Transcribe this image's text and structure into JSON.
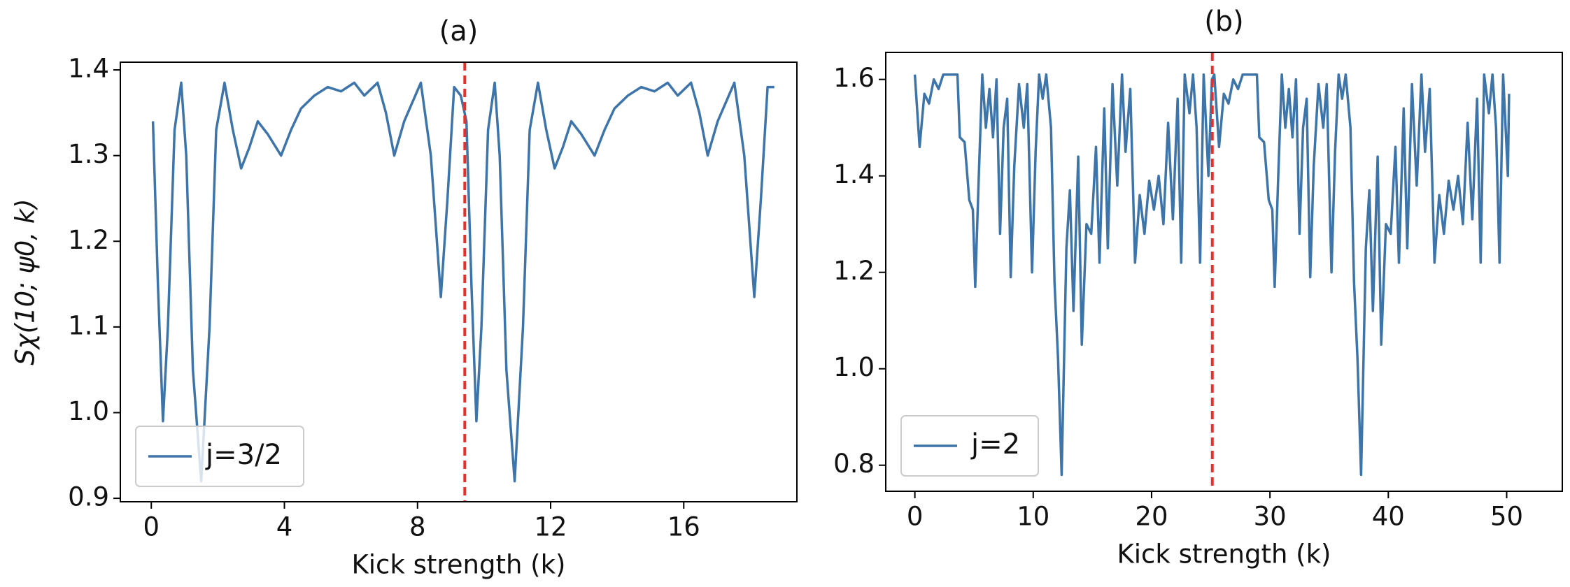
{
  "chart_data": [
    {
      "type": "line",
      "title": "(a)",
      "xlabel": "Kick strength (k)",
      "ylabel": "Sχ(10; ψ0, k)",
      "xlim": [
        -0.93,
        19.4
      ],
      "ylim": [
        0.896,
        1.409
      ],
      "xticks": [
        0,
        4,
        8,
        12,
        16
      ],
      "yticks": [
        0.9,
        {
          "value": 1,
          "label": "1.0"
        },
        1.1,
        1.2,
        1.3,
        1.4
      ],
      "legend": "lower left",
      "vline": {
        "x": 9.42,
        "color": "#e8302a"
      },
      "x": [
        0.05,
        0.2,
        0.35,
        0.5,
        0.7,
        0.9,
        1.05,
        1.25,
        1.5,
        1.75,
        1.95,
        2.2,
        2.45,
        2.7,
        2.95,
        3.2,
        3.5,
        3.9,
        4.2,
        4.5,
        4.9,
        5.3,
        5.7,
        6.1,
        6.4,
        6.8,
        7.05,
        7.3,
        7.6,
        8.1,
        8.4,
        8.7,
        8.9,
        9.1,
        9.3,
        9.47,
        9.62,
        9.77,
        9.92,
        10.12,
        10.32,
        10.47,
        10.67,
        10.92,
        11.17,
        11.37,
        11.62,
        11.87,
        12.12,
        12.37,
        12.62,
        12.92,
        13.32,
        13.62,
        13.92,
        14.32,
        14.72,
        15.12,
        15.52,
        15.82,
        16.22,
        16.47,
        16.72,
        17.02,
        17.52,
        17.82,
        18.12,
        18.32,
        18.52,
        18.72
      ],
      "series": [
        {
          "name": "j=3/2",
          "color": "#3d74aa",
          "values": [
            1.34,
            1.15,
            0.99,
            1.1,
            1.33,
            1.385,
            1.3,
            1.05,
            0.92,
            1.1,
            1.33,
            1.385,
            1.33,
            1.285,
            1.31,
            1.34,
            1.325,
            1.3,
            1.33,
            1.355,
            1.37,
            1.38,
            1.375,
            1.385,
            1.37,
            1.385,
            1.35,
            1.3,
            1.34,
            1.385,
            1.3,
            1.135,
            1.25,
            1.38,
            1.37,
            1.34,
            1.15,
            0.99,
            1.1,
            1.33,
            1.385,
            1.3,
            1.05,
            0.92,
            1.1,
            1.33,
            1.385,
            1.33,
            1.285,
            1.31,
            1.34,
            1.325,
            1.3,
            1.33,
            1.355,
            1.37,
            1.38,
            1.375,
            1.385,
            1.37,
            1.385,
            1.35,
            1.3,
            1.34,
            1.385,
            1.3,
            1.135,
            1.25,
            1.38,
            1.38
          ]
        }
      ]
    },
    {
      "type": "line",
      "title": "(b)",
      "xlabel": "Kick strength (k)",
      "xlim": [
        -2.46,
        54.7
      ],
      "ylim": [
        0.746,
        1.656
      ],
      "xticks": [
        0,
        10,
        20,
        30,
        40,
        50
      ],
      "yticks": [
        0.8,
        {
          "value": 1,
          "label": "1.0"
        },
        1.2,
        1.4,
        1.6
      ],
      "legend": "lower left",
      "vline": {
        "x": 25.13,
        "color": "#e8302a"
      },
      "x": [
        0,
        0.4,
        0.8,
        1.2,
        1.6,
        2.0,
        2.4,
        3.0,
        3.6,
        3.8,
        4.2,
        4.6,
        4.9,
        5.1,
        5.4,
        5.7,
        6.0,
        6.3,
        6.6,
        6.9,
        7.2,
        7.5,
        7.8,
        8.1,
        8.4,
        8.8,
        9.2,
        9.5,
        9.9,
        10.2,
        10.5,
        10.8,
        11.1,
        11.5,
        11.8,
        12.1,
        12.4,
        12.8,
        13.1,
        13.4,
        13.8,
        14.1,
        14.5,
        14.9,
        15.3,
        15.6,
        16.0,
        16.3,
        16.7,
        17.1,
        17.5,
        17.8,
        18.2,
        18.6,
        19.0,
        19.4,
        19.8,
        20.2,
        20.6,
        21.0,
        21.4,
        21.8,
        22.2,
        22.5,
        22.8,
        23.2,
        23.5,
        23.8,
        24.1,
        24.4,
        24.8,
        25.1,
        25.3,
        25.7,
        26.1,
        26.5,
        26.9,
        27.3,
        27.7,
        28.3,
        28.9,
        29.1,
        29.5,
        29.9,
        30.2,
        30.4,
        30.7,
        31.0,
        31.3,
        31.6,
        31.9,
        32.2,
        32.5,
        32.8,
        33.1,
        33.4,
        33.7,
        34.1,
        34.5,
        34.8,
        35.2,
        35.5,
        35.8,
        36.1,
        36.4,
        36.8,
        37.1,
        37.4,
        37.7,
        38.1,
        38.4,
        38.7,
        39.1,
        39.4,
        39.8,
        40.2,
        40.6,
        40.9,
        41.3,
        41.6,
        42.0,
        42.4,
        42.8,
        43.1,
        43.5,
        43.9,
        44.3,
        44.7,
        45.1,
        45.5,
        45.9,
        46.3,
        46.7,
        47.1,
        47.5,
        47.8,
        48.1,
        48.5,
        48.8,
        49.1,
        49.4,
        49.7,
        50.1,
        50.2
      ],
      "series": [
        {
          "name": "j=2",
          "color": "#3d74aa",
          "values": [
            1.61,
            1.46,
            1.57,
            1.55,
            1.6,
            1.58,
            1.61,
            1.61,
            1.61,
            1.48,
            1.47,
            1.35,
            1.33,
            1.17,
            1.4,
            1.61,
            1.5,
            1.58,
            1.48,
            1.6,
            1.28,
            1.5,
            1.56,
            1.19,
            1.42,
            1.59,
            1.5,
            1.59,
            1.2,
            1.45,
            1.61,
            1.56,
            1.61,
            1.5,
            1.18,
            1.02,
            0.78,
            1.25,
            1.37,
            1.12,
            1.44,
            1.05,
            1.3,
            1.28,
            1.46,
            1.22,
            1.54,
            1.25,
            1.59,
            1.38,
            1.61,
            1.45,
            1.58,
            1.22,
            1.36,
            1.28,
            1.39,
            1.33,
            1.4,
            1.3,
            1.51,
            1.31,
            1.56,
            1.22,
            1.61,
            1.53,
            1.61,
            1.5,
            1.22,
            1.61,
            1.4,
            1.6,
            1.61,
            1.46,
            1.57,
            1.55,
            1.6,
            1.58,
            1.61,
            1.61,
            1.61,
            1.48,
            1.47,
            1.35,
            1.33,
            1.17,
            1.4,
            1.61,
            1.5,
            1.58,
            1.48,
            1.6,
            1.28,
            1.5,
            1.56,
            1.19,
            1.42,
            1.59,
            1.5,
            1.59,
            1.2,
            1.45,
            1.61,
            1.56,
            1.61,
            1.5,
            1.18,
            1.02,
            0.78,
            1.25,
            1.37,
            1.12,
            1.44,
            1.05,
            1.3,
            1.28,
            1.46,
            1.22,
            1.54,
            1.25,
            1.59,
            1.38,
            1.61,
            1.45,
            1.58,
            1.22,
            1.36,
            1.28,
            1.39,
            1.33,
            1.4,
            1.3,
            1.51,
            1.31,
            1.56,
            1.22,
            1.61,
            1.53,
            1.61,
            1.5,
            1.22,
            1.61,
            1.4,
            1.57
          ]
        }
      ]
    }
  ]
}
